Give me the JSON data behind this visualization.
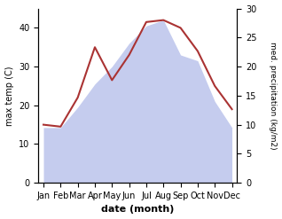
{
  "months": [
    "Jan",
    "Feb",
    "Mar",
    "Apr",
    "May",
    "Jun",
    "Jul",
    "Aug",
    "Sep",
    "Oct",
    "Nov",
    "Dec"
  ],
  "max_temp": [
    15.0,
    14.5,
    22.0,
    35.0,
    26.5,
    33.0,
    41.5,
    42.0,
    40.0,
    34.0,
    25.0,
    19.0
  ],
  "precipitation": [
    9.5,
    9.5,
    13.0,
    17.0,
    20.0,
    24.0,
    27.0,
    28.0,
    22.0,
    21.0,
    14.0,
    9.5
  ],
  "temp_color": "#aa3333",
  "precip_fill_color": "#c5ccee",
  "left_ylim": [
    0,
    45
  ],
  "right_ylim": [
    0,
    30
  ],
  "left_yticks": [
    0,
    10,
    20,
    30,
    40
  ],
  "right_yticks": [
    0,
    5,
    10,
    15,
    20,
    25,
    30
  ],
  "xlabel": "date (month)",
  "ylabel_left": "max temp (C)",
  "ylabel_right": "med. precipitation (kg/m2)"
}
